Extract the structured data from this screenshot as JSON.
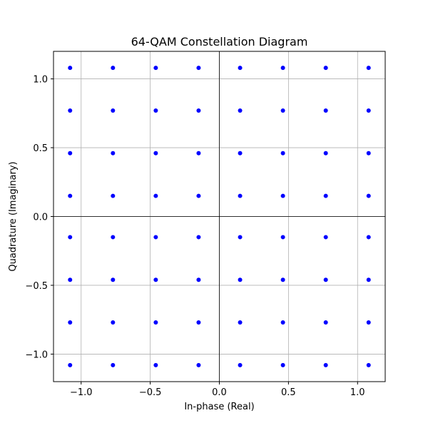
{
  "chart_data": {
    "type": "scatter",
    "title": "64-QAM Constellation Diagram",
    "xlabel": "In-phase (Real)",
    "ylabel": "Quadrature (Imaginary)",
    "xlim": [
      -1.2,
      1.2
    ],
    "ylim": [
      -1.2,
      1.2
    ],
    "grid": true,
    "reference_lines": {
      "x": 0,
      "y": 0
    },
    "marker_color": "#0000ff",
    "x_ticks": [
      {
        "value": -1.0,
        "label": "−1.0"
      },
      {
        "value": -0.5,
        "label": "−0.5"
      },
      {
        "value": 0.0,
        "label": "0.0"
      },
      {
        "value": 0.5,
        "label": "0.5"
      },
      {
        "value": 1.0,
        "label": "1.0"
      }
    ],
    "y_ticks": [
      {
        "value": -1.0,
        "label": "−1.0"
      },
      {
        "value": -0.5,
        "label": "−0.5"
      },
      {
        "value": 0.0,
        "label": "0.0"
      },
      {
        "value": 0.5,
        "label": "0.5"
      },
      {
        "value": 1.0,
        "label": "1.0"
      }
    ],
    "levels": [
      -1.08,
      -0.77,
      -0.46,
      -0.15,
      0.15,
      0.46,
      0.77,
      1.08
    ]
  }
}
